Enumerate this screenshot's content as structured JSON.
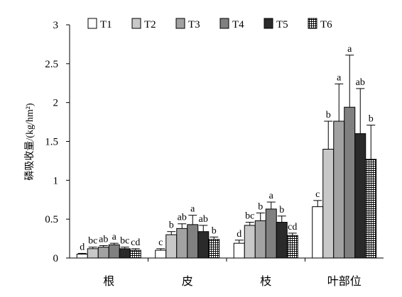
{
  "chart_data": {
    "type": "bar",
    "title": "",
    "xlabel": "",
    "ylabel": "磷吸收量/(kg/hm²)",
    "ylim": [
      0,
      3
    ],
    "yticks": [
      "0",
      "0.5",
      "1",
      "1.5",
      "2",
      "2.5",
      "3"
    ],
    "categories": [
      "根",
      "皮",
      "枝",
      "叶部位"
    ],
    "legend_position": "top",
    "series": [
      {
        "name": "T1",
        "fill": "#ffffff",
        "pattern": "none",
        "values": [
          0.05,
          0.1,
          0.19,
          0.66
        ],
        "errors": [
          0.01,
          0.02,
          0.04,
          0.08
        ],
        "labels": [
          "d",
          "c",
          "d",
          "c"
        ]
      },
      {
        "name": "T2",
        "fill": "#c8c8c8",
        "pattern": "none",
        "values": [
          0.12,
          0.3,
          0.42,
          1.4
        ],
        "errors": [
          0.02,
          0.04,
          0.04,
          0.36
        ],
        "labels": [
          "bc",
          "b",
          "bc",
          "b"
        ]
      },
      {
        "name": "T3",
        "fill": "#a2a2a2",
        "pattern": "none",
        "values": [
          0.14,
          0.38,
          0.48,
          1.76
        ],
        "errors": [
          0.02,
          0.06,
          0.1,
          0.48
        ],
        "labels": [
          "ab",
          "ab",
          "b",
          "a"
        ]
      },
      {
        "name": "T4",
        "fill": "#808080",
        "pattern": "none",
        "values": [
          0.17,
          0.43,
          0.63,
          1.94
        ],
        "errors": [
          0.02,
          0.12,
          0.09,
          0.67
        ],
        "labels": [
          "a",
          "a",
          "a",
          "a"
        ]
      },
      {
        "name": "T5",
        "fill": "#2a2a2a",
        "pattern": "none",
        "values": [
          0.12,
          0.34,
          0.46,
          1.6
        ],
        "errors": [
          0.02,
          0.08,
          0.08,
          0.58
        ],
        "labels": [
          "bc",
          "ab",
          "b",
          "ab"
        ]
      },
      {
        "name": "T6",
        "fill": "#ffffff",
        "pattern": "grid",
        "values": [
          0.1,
          0.24,
          0.29,
          1.27
        ],
        "errors": [
          0.02,
          0.03,
          0.03,
          0.44
        ],
        "labels": [
          "cd",
          "b",
          "cd",
          "b"
        ]
      }
    ]
  }
}
